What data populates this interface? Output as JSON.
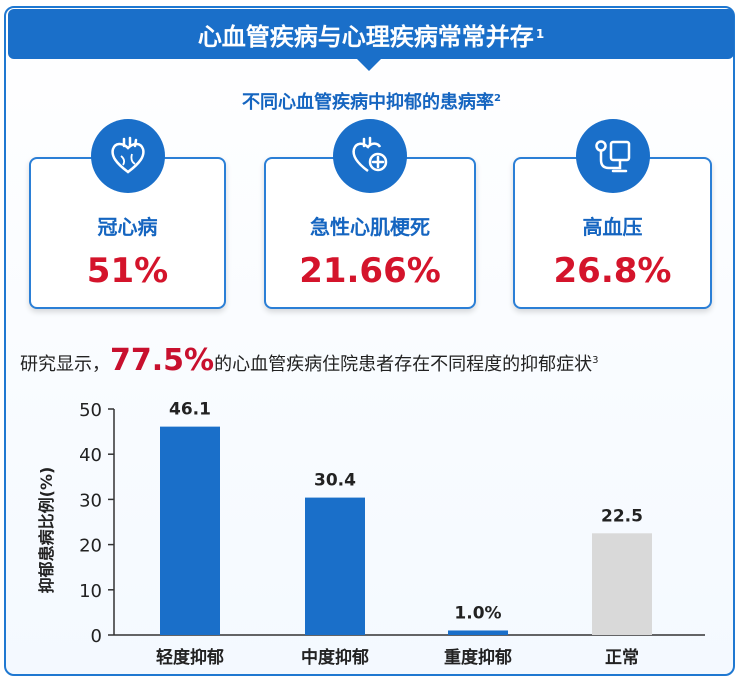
{
  "banner": {
    "title": "心血管疾病与心理疾病常常并存",
    "ref": "1"
  },
  "subtitle": {
    "text": "不同心血管疾病中抑郁的患病率",
    "ref": "2"
  },
  "cards": [
    {
      "label": "冠心病",
      "value": "51%",
      "icon": "heart-icon"
    },
    {
      "label": "急性心肌梗死",
      "value": "21.66%",
      "icon": "heart-plus-icon"
    },
    {
      "label": "高血压",
      "value": "26.8%",
      "icon": "blood-pressure-monitor-icon"
    }
  ],
  "statement": {
    "prefix": "研究显示，",
    "highlight": "77.5%",
    "suffix": "的心血管疾病住院患者存在不同程度的抑郁症状",
    "ref": "3"
  },
  "colors": {
    "primary": "#1a6fc9",
    "accent_red": "#c8102e",
    "bar_blue": "#1a6fc9",
    "bar_gray": "#d9d9d9"
  },
  "chart_data": {
    "type": "bar",
    "categories": [
      "轻度抑郁",
      "中度抑郁",
      "重度抑郁",
      "正常"
    ],
    "values": [
      46.1,
      30.4,
      1.0,
      22.5
    ],
    "data_labels": [
      "46.1",
      "30.4",
      "1.0%",
      "22.5"
    ],
    "bar_colors": [
      "#1a6fc9",
      "#1a6fc9",
      "#1a6fc9",
      "#d9d9d9"
    ],
    "ylabel": "抑郁患病比例(%)",
    "ylim": [
      0,
      50
    ],
    "yticks": [
      "0",
      "10",
      "20",
      "30",
      "40",
      "50"
    ],
    "grid": false
  }
}
